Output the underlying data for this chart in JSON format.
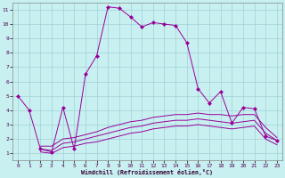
{
  "xlabel": "Windchill (Refroidissement éolien,°C)",
  "background_color": "#c8f0f0",
  "grid_color": "#a0d0d8",
  "line_color": "#990099",
  "xlim": [
    -0.5,
    23.5
  ],
  "ylim": [
    0.5,
    11.5
  ],
  "xticks": [
    0,
    1,
    2,
    3,
    4,
    5,
    6,
    7,
    8,
    9,
    10,
    11,
    12,
    13,
    14,
    15,
    16,
    17,
    18,
    19,
    20,
    21,
    22,
    23
  ],
  "yticks": [
    1,
    2,
    3,
    4,
    5,
    6,
    7,
    8,
    9,
    10,
    11
  ],
  "main_x": [
    0,
    1,
    2,
    3,
    4,
    5,
    6,
    7,
    8,
    9,
    10,
    11,
    12,
    13,
    14,
    15,
    16,
    17,
    18,
    19,
    20,
    21,
    22,
    23
  ],
  "main_y": [
    5.0,
    4.0,
    1.3,
    1.1,
    4.2,
    1.3,
    6.5,
    7.8,
    11.2,
    11.1,
    10.5,
    9.8,
    10.1,
    10.0,
    9.9,
    8.7,
    5.5,
    4.5,
    5.3,
    3.1,
    4.2,
    4.1,
    2.2,
    1.9
  ],
  "line2_x": [
    2,
    3,
    4,
    5,
    6,
    7,
    8,
    9,
    10,
    11,
    12,
    13,
    14,
    15,
    16,
    17,
    18,
    19,
    20,
    21,
    22,
    23
  ],
  "line2_y": [
    1.5,
    1.5,
    2.0,
    2.1,
    2.3,
    2.5,
    2.8,
    3.0,
    3.2,
    3.3,
    3.5,
    3.6,
    3.7,
    3.7,
    3.8,
    3.7,
    3.7,
    3.6,
    3.7,
    3.7,
    2.8,
    2.1
  ],
  "line3_x": [
    2,
    3,
    4,
    5,
    6,
    7,
    8,
    9,
    10,
    11,
    12,
    13,
    14,
    15,
    16,
    17,
    18,
    19,
    20,
    21,
    22,
    23
  ],
  "line3_y": [
    1.3,
    1.2,
    1.7,
    1.8,
    2.0,
    2.2,
    2.4,
    2.6,
    2.8,
    2.9,
    3.1,
    3.2,
    3.3,
    3.3,
    3.4,
    3.3,
    3.2,
    3.1,
    3.2,
    3.3,
    2.4,
    1.9
  ],
  "line4_x": [
    2,
    3,
    4,
    5,
    6,
    7,
    8,
    9,
    10,
    11,
    12,
    13,
    14,
    15,
    16,
    17,
    18,
    19,
    20,
    21,
    22,
    23
  ],
  "line4_y": [
    1.1,
    1.0,
    1.4,
    1.5,
    1.7,
    1.8,
    2.0,
    2.2,
    2.4,
    2.5,
    2.7,
    2.8,
    2.9,
    2.9,
    3.0,
    2.9,
    2.8,
    2.7,
    2.8,
    2.9,
    2.0,
    1.6
  ]
}
